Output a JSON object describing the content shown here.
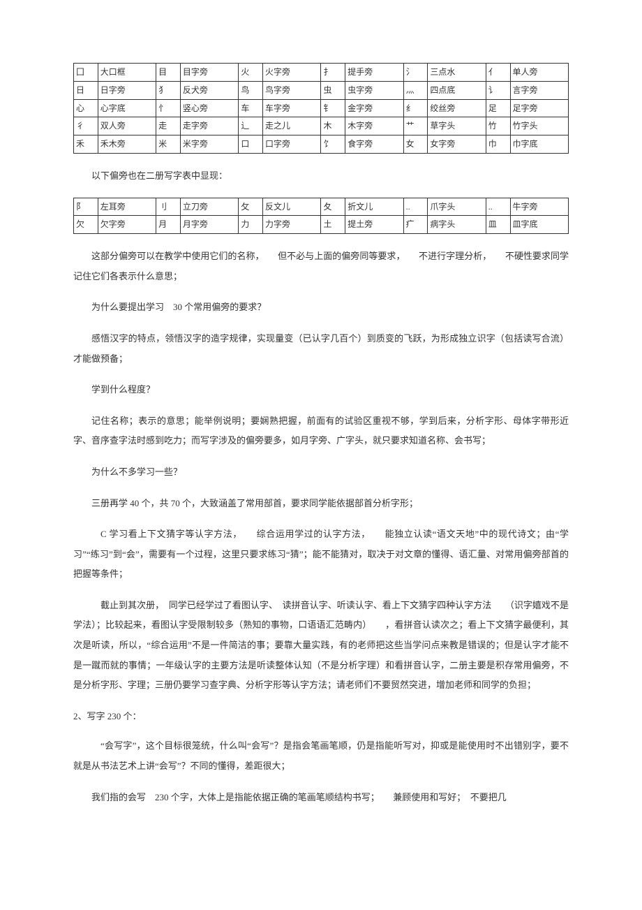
{
  "table1": {
    "rows": [
      [
        "囗",
        "大口框",
        "目",
        "目字旁",
        "火",
        "火字旁",
        "扌",
        "提手旁",
        "氵",
        "三点水",
        "亻",
        "单人旁"
      ],
      [
        "日",
        "日字旁",
        "犭",
        "反犬旁",
        "鸟",
        "鸟字旁",
        "虫",
        "虫字旁",
        "灬",
        "四点底",
        "讠",
        "言字旁"
      ],
      [
        "心",
        "心字底",
        "忄",
        "竖心旁",
        "车",
        "车字旁",
        "钅",
        "金字旁",
        "纟",
        "绞丝旁",
        "足",
        "足字旁"
      ],
      [
        "彳",
        "双人旁",
        "走",
        "走字旁",
        "辶",
        "走之儿",
        "木",
        "木字旁",
        "艹",
        "草字头",
        "竹",
        "竹字头"
      ],
      [
        "禾",
        "禾木旁",
        "米",
        "米字旁",
        "口",
        "口字旁",
        "饣",
        "食字旁",
        "女",
        "女字旁",
        "巾",
        "巾字底"
      ]
    ]
  },
  "para_after_t1": "以下偏旁也在二册写字表中显现：",
  "table2": {
    "rows": [
      [
        "阝",
        "左耳旁",
        "刂",
        "立刀旁",
        "攵",
        "反文儿",
        "夂",
        "折文儿",
        "..",
        "爪字头",
        "..",
        "牛字旁"
      ],
      [
        "欠",
        "欠字旁",
        "月",
        "月字旁",
        "力",
        "力字旁",
        "土",
        "提土旁",
        "疒",
        "病字头",
        "皿",
        "皿字底"
      ]
    ]
  },
  "p1": "这部分偏旁可以在教学中使用它们的名称，　　但不必与上面的偏旁同等要求，　　不进行字理分析，　　不硬性要求同学记住它们各表示什么意思；",
  "p2": "为什么要提出学习　30 个常用偏旁的要求？",
  "p3": "感悟汉字的特点，领悟汉字的造字规律，实现量变（已认字几百个）到质变的飞跃，为形成独立识字（包括读写合流）才能做预备；",
  "p4": "学到什么程度？",
  "p5": "记住名称；表示的意思；能举例说明；要娴熟把握，前面有的试验区重视不够，学到后来，分析字形、母体字带形近字、音序查字法时感到吃力；而写字涉及的偏旁要多，如月字旁、广字头，就只要求知道名称、会书写；",
  "p6": "为什么不多学习一些？",
  "p7": "三册再学 40 个，共 70 个，大致涵盖了常用部首，要求同学能依据部首分析字形；",
  "p8": "C 学习看上下文猜字等认字方法，　　综合运用学过的认字方法，　　能独立认读“语文天地”中的现代诗文；由“学习”“练习”到“会”，需要有一个过程，这里只要求练习“猜”；能不能猜对，取决于对文章的懂得、语汇量、对常用偏旁部首的把握等条件；",
  "p9": "截止到其次册，　同学已经学过了看图认字、　读拼音认字、听读认字、看上下文猜字四种认字方法　　（识字嬉戏不是学法）；比较起来，看图认字受限制较多（熟知的事物，口语语汇范畴内）　　，看拼音认读次之；看上下文猜字最便利，其次是听读，所以，“综合运用”不是一件简洁的事；要靠大量实践，有的老师把这些当学问点来教是错误的；但是认字才能不是一蹴而就的事情；一年级认字的主要方法是听读整体认知（不是分析字理）和看拼音认字，二册主要是积存常用偏旁，不是分析字形、字理；三册仍要学习查字典、分析字形等认字方法；请老师们不要贸然突进，增加老师和同学的负担；",
  "section2": "2、写字 230 个：",
  "p10": "“会写字”，这个目标很笼统，什么叫“会写”？是指会笔画笔顺，仍是指能听写对，抑或是能使用时不出错别字，要不就是从书法艺术上讲“会写”？不同的懂得，差距很大；",
  "p11": "我们指的会写　230 个字，大体上是指能依据正确的笔画笔顺结构书写；　　兼顾使用和写好；　不要把几"
}
